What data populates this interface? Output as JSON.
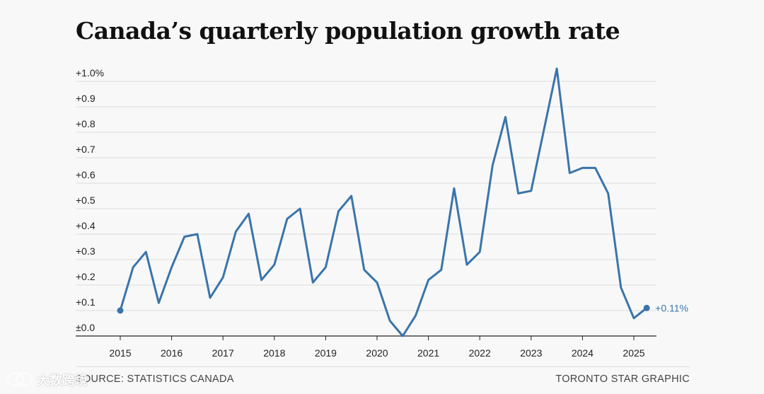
{
  "title": "Canada’s quarterly population growth rate",
  "footer": {
    "source": "SOURCE: STATISTICS CANADA",
    "credit": "TORONTO STAR GRAPHIC"
  },
  "watermark": {
    "text": "大数跨境",
    "icon": "chat-bubble-logo-icon"
  },
  "colors": {
    "line": "#3a74ab",
    "grid": "#dddddd",
    "axis": "#222222",
    "background": "#f8f8f8"
  },
  "chart_data": {
    "type": "line",
    "title": "Canada’s quarterly population growth rate",
    "xlabel": "",
    "ylabel": "",
    "x_ticks": [
      "2015",
      "2016",
      "2017",
      "2018",
      "2019",
      "2020",
      "2021",
      "2022",
      "2023",
      "2024",
      "2025"
    ],
    "y_ticks": [
      {
        "value": 0.0,
        "label": "±0.0"
      },
      {
        "value": 0.1,
        "label": "+0.1"
      },
      {
        "value": 0.2,
        "label": "+0.2"
      },
      {
        "value": 0.3,
        "label": "+0.3"
      },
      {
        "value": 0.4,
        "label": "+0.4"
      },
      {
        "value": 0.5,
        "label": "+0.5"
      },
      {
        "value": 0.6,
        "label": "+0.6"
      },
      {
        "value": 0.7,
        "label": "+0.7"
      },
      {
        "value": 0.8,
        "label": "+0.8"
      },
      {
        "value": 0.9,
        "label": "+0.9"
      },
      {
        "value": 1.0,
        "label": "+1.0%"
      }
    ],
    "ylim": [
      0,
      1.0
    ],
    "xlim": [
      2015,
      2025.25
    ],
    "grid": true,
    "end_label": "+0.11%",
    "series": [
      {
        "points": [
          [
            2015.0,
            0.1
          ],
          [
            2015.25,
            0.27
          ],
          [
            2015.5,
            0.33
          ],
          [
            2015.75,
            0.13
          ],
          [
            2016.0,
            0.27
          ],
          [
            2016.25,
            0.39
          ],
          [
            2016.5,
            0.4
          ],
          [
            2016.75,
            0.15
          ],
          [
            2017.0,
            0.23
          ],
          [
            2017.25,
            0.41
          ],
          [
            2017.5,
            0.48
          ],
          [
            2017.75,
            0.22
          ],
          [
            2018.0,
            0.28
          ],
          [
            2018.25,
            0.46
          ],
          [
            2018.5,
            0.5
          ],
          [
            2018.75,
            0.21
          ],
          [
            2019.0,
            0.27
          ],
          [
            2019.25,
            0.49
          ],
          [
            2019.5,
            0.55
          ],
          [
            2019.75,
            0.26
          ],
          [
            2020.0,
            0.21
          ],
          [
            2020.25,
            0.06
          ],
          [
            2020.5,
            0.0
          ],
          [
            2020.75,
            0.08
          ],
          [
            2021.0,
            0.22
          ],
          [
            2021.25,
            0.26
          ],
          [
            2021.5,
            0.58
          ],
          [
            2021.75,
            0.28
          ],
          [
            2022.0,
            0.33
          ],
          [
            2022.25,
            0.67
          ],
          [
            2022.5,
            0.86
          ],
          [
            2022.75,
            0.56
          ],
          [
            2023.0,
            0.57
          ],
          [
            2023.25,
            0.81
          ],
          [
            2023.5,
            1.05
          ],
          [
            2023.75,
            0.64
          ],
          [
            2024.0,
            0.66
          ],
          [
            2024.25,
            0.66
          ],
          [
            2024.5,
            0.56
          ],
          [
            2024.75,
            0.19
          ],
          [
            2025.0,
            0.07
          ],
          [
            2025.25,
            0.11
          ]
        ]
      }
    ]
  }
}
